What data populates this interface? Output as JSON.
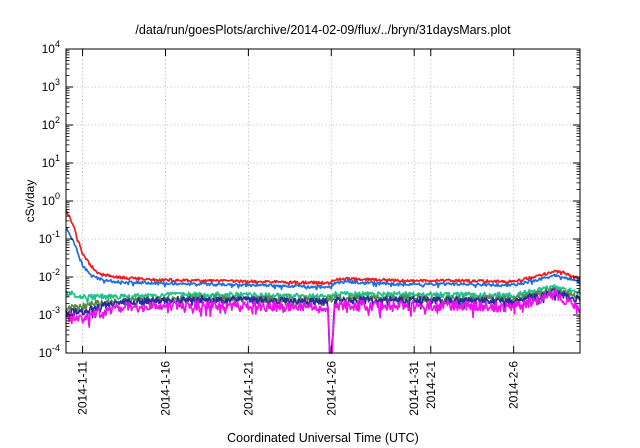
{
  "chart_data": {
    "type": "line",
    "title": "/data/run/goesPlots/archive/2014-02-09/flux/../bryn/31daysMars.plot",
    "xlabel": "Coordinated Universal Time (UTC)",
    "ylabel": "cSv/day",
    "yscale": "log",
    "ylim": [
      "1e-4",
      "1e4"
    ],
    "xlim": [
      "2014-01-10",
      "2014-02-10"
    ],
    "grid": true,
    "y_ticks": [
      {
        "value": -4,
        "base": "10",
        "exp": "-4"
      },
      {
        "value": -3,
        "base": "10",
        "exp": "-3"
      },
      {
        "value": -2,
        "base": "10",
        "exp": "-2"
      },
      {
        "value": -1,
        "base": "10",
        "exp": "-1"
      },
      {
        "value": 0,
        "base": "10",
        "exp": "0"
      },
      {
        "value": 1,
        "base": "10",
        "exp": "1"
      },
      {
        "value": 2,
        "base": "10",
        "exp": "2"
      },
      {
        "value": 3,
        "base": "10",
        "exp": "3"
      },
      {
        "value": 4,
        "base": "10",
        "exp": "4"
      }
    ],
    "x_ticks": [
      {
        "day": 1,
        "label": "2014-1-11"
      },
      {
        "day": 6,
        "label": "2014-1-16"
      },
      {
        "day": 11,
        "label": "2014-1-21"
      },
      {
        "day": 16,
        "label": "2014-1-26"
      },
      {
        "day": 21,
        "label": "2014-1-31"
      },
      {
        "day": 22,
        "label": "2014-2-1"
      },
      {
        "day": 27,
        "label": "2014-2-6"
      }
    ],
    "series": [
      {
        "color": "#ee1c1c",
        "x": [
          0,
          0.5,
          1,
          1.5,
          2,
          3,
          5,
          8,
          12,
          15.9,
          16.2,
          17,
          20,
          24,
          27,
          29.5,
          30,
          31
        ],
        "y": [
          0.6,
          0.2,
          0.04,
          0.02,
          0.012,
          0.01,
          0.0085,
          0.008,
          0.0075,
          0.007,
          0.0085,
          0.009,
          0.008,
          0.008,
          0.0075,
          0.014,
          0.013,
          0.009
        ]
      },
      {
        "color": "#1b6fe0",
        "x": [
          0,
          0.5,
          1,
          1.5,
          2,
          3,
          5,
          8,
          12,
          15.9,
          16.2,
          17,
          20,
          24,
          27,
          29.5,
          30,
          31
        ],
        "y": [
          0.2,
          0.08,
          0.02,
          0.011,
          0.009,
          0.0075,
          0.007,
          0.0065,
          0.006,
          0.0055,
          0.007,
          0.0075,
          0.0065,
          0.0065,
          0.006,
          0.011,
          0.01,
          0.0075
        ]
      },
      {
        "color": "#20c090",
        "x": [
          0,
          1,
          3,
          8,
          12,
          15.9,
          16.2,
          20,
          24,
          27,
          29.5,
          31
        ],
        "y": [
          0.004,
          0.003,
          0.003,
          0.0035,
          0.0033,
          0.003,
          0.0035,
          0.0035,
          0.0034,
          0.0033,
          0.0055,
          0.004
        ]
      },
      {
        "color": "#5a8a40",
        "x": [
          0,
          1,
          3,
          8,
          12,
          15.9,
          16.2,
          20,
          24,
          27,
          29.5,
          31
        ],
        "y": [
          0.0015,
          0.0018,
          0.0024,
          0.0028,
          0.0026,
          0.0025,
          0.0028,
          0.0028,
          0.0027,
          0.0026,
          0.0045,
          0.003
        ]
      },
      {
        "color": "#2a2aa0",
        "x": [
          0,
          1,
          3,
          8,
          12,
          15.8,
          15.9,
          16.0,
          16.2,
          20,
          24,
          27,
          29.5,
          31
        ],
        "y": [
          0.0013,
          0.0012,
          0.0022,
          0.0026,
          0.0024,
          0.0022,
          0.0001,
          0.0001,
          0.0024,
          0.0025,
          0.0024,
          0.0023,
          0.004,
          0.0025
        ]
      },
      {
        "color": "#ee10ee",
        "x": [
          0,
          1,
          3,
          8,
          12,
          15.8,
          15.9,
          16.05,
          16.2,
          20,
          24,
          27,
          29.5,
          31
        ],
        "y": [
          0.0009,
          0.0008,
          0.0016,
          0.0018,
          0.0017,
          0.0016,
          0.0001,
          0.0001,
          0.0018,
          0.0018,
          0.0017,
          0.0016,
          0.0035,
          0.0014
        ]
      }
    ]
  }
}
